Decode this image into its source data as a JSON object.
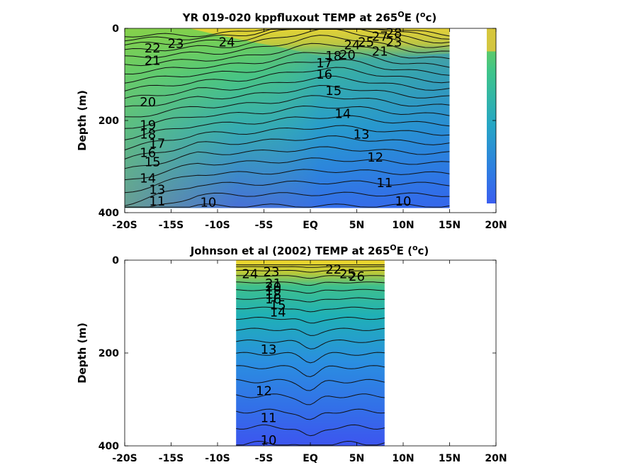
{
  "chart_data": [
    {
      "type": "contour",
      "title_main": "YR 019-020 kppfluxout TEMP at 265",
      "title_sup": "O",
      "title_end": "E (",
      "title_unit_sup": "o",
      "title_unit_end": "c)",
      "ylabel": "Depth (m)",
      "xlim": [
        -20,
        20
      ],
      "ylim": [
        0,
        400
      ],
      "x_ticks": [
        -20,
        -15,
        -10,
        -5,
        0,
        5,
        10,
        15,
        20
      ],
      "x_tick_labels": [
        "-20S",
        "-15S",
        "-10S",
        "-5S",
        "EQ",
        "5N",
        "10N",
        "15N",
        "20N"
      ],
      "y_ticks": [
        0,
        200,
        400
      ],
      "y_tick_labels": [
        "0",
        "200",
        "400"
      ],
      "data_x_range": [
        -20,
        15
      ],
      "data_depth_max": 390,
      "gap_x": [
        15,
        19
      ],
      "contour_labels": [
        {
          "text": "23",
          "x": -14.5,
          "depth": 33
        },
        {
          "text": "24",
          "x": -9,
          "depth": 30
        },
        {
          "text": "22",
          "x": -17,
          "depth": 43
        },
        {
          "text": "21",
          "x": -17,
          "depth": 70
        },
        {
          "text": "28",
          "x": 9,
          "depth": 10
        },
        {
          "text": "27",
          "x": 7.5,
          "depth": 18
        },
        {
          "text": "24",
          "x": 4.5,
          "depth": 36
        },
        {
          "text": "25",
          "x": 6,
          "depth": 30
        },
        {
          "text": "21",
          "x": 7.5,
          "depth": 50
        },
        {
          "text": "23",
          "x": 9,
          "depth": 30
        },
        {
          "text": "20",
          "x": 4,
          "depth": 58
        },
        {
          "text": "18",
          "x": 2.5,
          "depth": 60
        },
        {
          "text": "17",
          "x": 1.5,
          "depth": 75
        },
        {
          "text": "16",
          "x": 1.5,
          "depth": 100
        },
        {
          "text": "15",
          "x": 2.5,
          "depth": 135
        },
        {
          "text": "14",
          "x": 3.5,
          "depth": 185
        },
        {
          "text": "13",
          "x": 5.5,
          "depth": 230
        },
        {
          "text": "12",
          "x": 7,
          "depth": 280
        },
        {
          "text": "11",
          "x": 8,
          "depth": 335
        },
        {
          "text": "10",
          "x": 10,
          "depth": 375
        },
        {
          "text": "20",
          "x": -17.5,
          "depth": 160
        },
        {
          "text": "19",
          "x": -17.5,
          "depth": 210
        },
        {
          "text": "18",
          "x": -17.5,
          "depth": 230
        },
        {
          "text": "17",
          "x": -16.5,
          "depth": 250
        },
        {
          "text": "16",
          "x": -17.5,
          "depth": 270
        },
        {
          "text": "15",
          "x": -17,
          "depth": 290
        },
        {
          "text": "14",
          "x": -17.5,
          "depth": 325
        },
        {
          "text": "13",
          "x": -16.5,
          "depth": 350
        },
        {
          "text": "11",
          "x": -16.5,
          "depth": 375
        },
        {
          "text": "10",
          "x": -11,
          "depth": 378
        }
      ]
    },
    {
      "type": "contour",
      "title_main": "Johnson et al (2002) TEMP at 265",
      "title_sup": "O",
      "title_end": "E (",
      "title_unit_sup": "o",
      "title_unit_end": "c)",
      "ylabel": "Depth (m)",
      "xlim": [
        -20,
        20
      ],
      "ylim": [
        0,
        400
      ],
      "x_ticks": [
        -20,
        -15,
        -10,
        -5,
        0,
        5,
        10,
        15,
        20
      ],
      "x_tick_labels": [
        "-20S",
        "-15S",
        "-10S",
        "-5S",
        "EQ",
        "5N",
        "10N",
        "15N",
        "20N"
      ],
      "y_ticks": [
        0,
        200,
        400
      ],
      "y_tick_labels": [
        "0",
        "200",
        "400"
      ],
      "data_x_range": [
        -8,
        8
      ],
      "data_depth_max": 400,
      "contour_labels": [
        {
          "text": "24",
          "x": -6.5,
          "depth": 30
        },
        {
          "text": "23",
          "x": -4.2,
          "depth": 25
        },
        {
          "text": "22",
          "x": 2.5,
          "depth": 20
        },
        {
          "text": "25",
          "x": 4,
          "depth": 30
        },
        {
          "text": "26",
          "x": 5,
          "depth": 35
        },
        {
          "text": "21",
          "x": -4,
          "depth": 50
        },
        {
          "text": "20",
          "x": -4,
          "depth": 58
        },
        {
          "text": "19",
          "x": -4,
          "depth": 66
        },
        {
          "text": "18",
          "x": -4,
          "depth": 74
        },
        {
          "text": "16",
          "x": -4,
          "depth": 84
        },
        {
          "text": "15",
          "x": -3.5,
          "depth": 97
        },
        {
          "text": "14",
          "x": -3.5,
          "depth": 112
        },
        {
          "text": "13",
          "x": -4.5,
          "depth": 192
        },
        {
          "text": "12",
          "x": -5,
          "depth": 282
        },
        {
          "text": "11",
          "x": -4.5,
          "depth": 340
        },
        {
          "text": "10",
          "x": -4.5,
          "depth": 388
        }
      ]
    }
  ]
}
